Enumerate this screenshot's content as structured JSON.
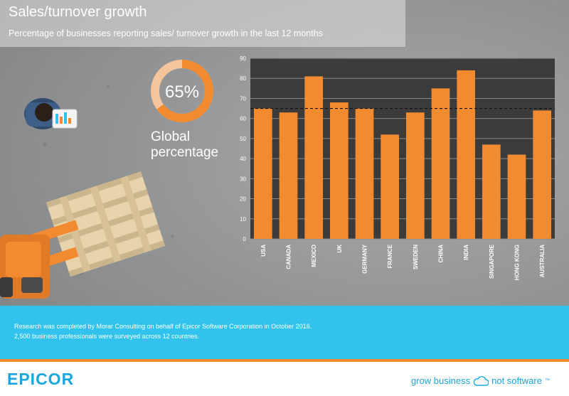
{
  "header": {
    "title": "Sales/turnover growth",
    "subtitle": "Percentage of businesses reporting sales/ turnover growth in the last 12 months"
  },
  "global": {
    "value": 65,
    "value_label": "65%",
    "label_line1": "Global",
    "label_line2": "percentage"
  },
  "chart_data": {
    "type": "bar",
    "categories": [
      "USA",
      "CANADA",
      "MEXICO",
      "UK",
      "GERMANY",
      "FRANCE",
      "SWEDEN",
      "CHINA",
      "INDIA",
      "SINGAPORE",
      "HONG KONG",
      "AUSTRALIA"
    ],
    "values": [
      65,
      63,
      81,
      68,
      65,
      52,
      63,
      75,
      84,
      47,
      42,
      64
    ],
    "ylim": [
      0,
      90
    ],
    "yticks": [
      0,
      10,
      20,
      30,
      40,
      50,
      60,
      70,
      80,
      90
    ],
    "reference_line": 65,
    "bar_color": "#f28a30",
    "grid": true
  },
  "footer": {
    "line1": "Research was completed by Morar Consulting on behalf of Epicor Software Corporation in October 2016.",
    "line2": "2,500 business professionals were surveyed across 12 countries.",
    "logo": "EPICOR",
    "tagline_left": "grow business",
    "tagline_right": "not software",
    "trademark": "™"
  },
  "colors": {
    "accent_orange": "#f28a30",
    "accent_blue": "#31c3ee",
    "brand_blue": "#1aa6df"
  }
}
